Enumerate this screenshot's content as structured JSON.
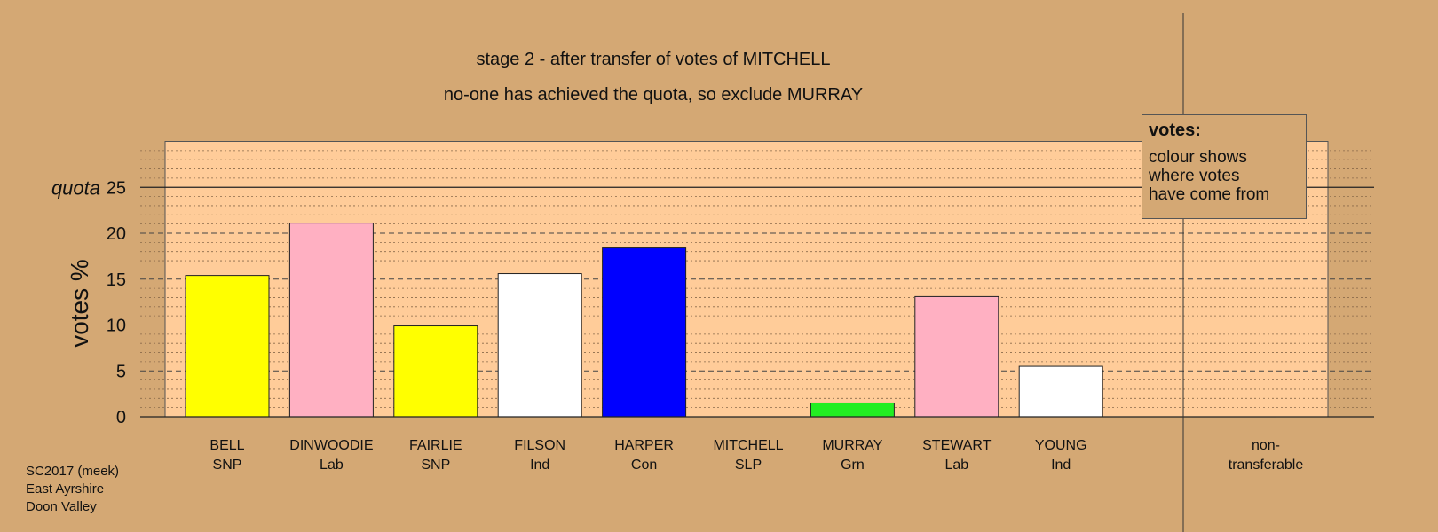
{
  "chart_data": {
    "type": "bar",
    "title": "stage 2 - after transfer of votes of MITCHELL",
    "subtitle": "no-one has achieved the quota, so exclude MURRAY",
    "ylabel": "votes %",
    "ylim": [
      0,
      30
    ],
    "yticks": [
      0,
      5,
      10,
      15,
      20,
      25
    ],
    "quota": 25,
    "quota_label": "quota",
    "categories": [
      {
        "name": "BELL",
        "party": "SNP"
      },
      {
        "name": "DINWOODIE",
        "party": "Lab"
      },
      {
        "name": "FAIRLIE",
        "party": "SNP"
      },
      {
        "name": "FILSON",
        "party": "Ind"
      },
      {
        "name": "HARPER",
        "party": "Con"
      },
      {
        "name": "MITCHELL",
        "party": "SLP"
      },
      {
        "name": "MURRAY",
        "party": "Grn"
      },
      {
        "name": "STEWART",
        "party": "Lab"
      },
      {
        "name": "YOUNG",
        "party": "Ind"
      }
    ],
    "values": [
      15.4,
      21.1,
      9.9,
      15.6,
      18.4,
      0,
      1.5,
      13.1,
      5.5
    ],
    "colors": [
      "#ffff00",
      "#ffb0c2",
      "#ffff00",
      "#ffffff",
      "#0000ff",
      "#ffffff",
      "#22ee22",
      "#ffb0c2",
      "#ffffff"
    ],
    "nontransferable_label": "non-\ntransferable",
    "nontransferable_value": 0,
    "grid": true,
    "plot_background": "#ffcc99",
    "page_background": "#d4a874"
  },
  "legend": {
    "title": "votes:",
    "body": "colour shows\nwhere votes\nhave come from"
  },
  "footer": [
    "SC2017 (meek)",
    "East Ayrshire",
    "Doon Valley"
  ]
}
